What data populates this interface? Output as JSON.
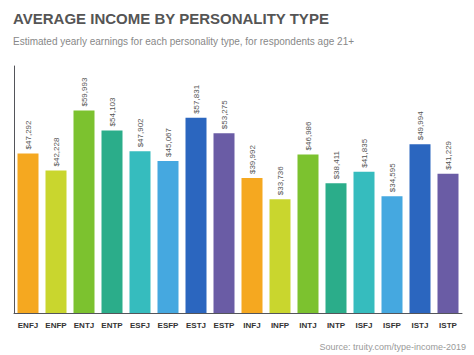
{
  "chart_data": {
    "type": "bar",
    "title": "AVERAGE INCOME BY PERSONALITY TYPE",
    "subtitle": "Estimated yearly earnings for each personality type, for respondents age 21+",
    "annotations": [
      "Source: truity.com/type-income-2019"
    ],
    "categories": [
      "ENFJ",
      "ENFP",
      "ENTJ",
      "ENTP",
      "ESFJ",
      "ESFP",
      "ESTJ",
      "ESTP",
      "INFJ",
      "INFP",
      "INTJ",
      "INTP",
      "ISFJ",
      "ISFP",
      "ISTJ",
      "ISTP"
    ],
    "values": [
      47292,
      42228,
      59993,
      54103,
      47902,
      45067,
      57831,
      53275,
      39992,
      33736,
      46986,
      38411,
      41835,
      34595,
      49994,
      41229
    ],
    "value_labels": [
      "$47,292",
      "$42,228",
      "$59,993",
      "$54,103",
      "$47,902",
      "$45,067",
      "$57,831",
      "$53,275",
      "$39,992",
      "$33,736",
      "$46,986",
      "$38,411",
      "$41,835",
      "$34,595",
      "$49,994",
      "$41,229"
    ],
    "colors": [
      "#F5A820",
      "#C9D62E",
      "#7CC22F",
      "#2BAD8A",
      "#36BCBE",
      "#45A8E0",
      "#2B66BF",
      "#6A5CA5",
      "#F5A820",
      "#C9D62E",
      "#7CC22F",
      "#2BAD8A",
      "#36BCBE",
      "#45A8E0",
      "#2B66BF",
      "#6A5CA5"
    ],
    "ylim": [
      0,
      73191.46
    ],
    "data_labels": true,
    "tick_labels": "x",
    "grid": false
  }
}
